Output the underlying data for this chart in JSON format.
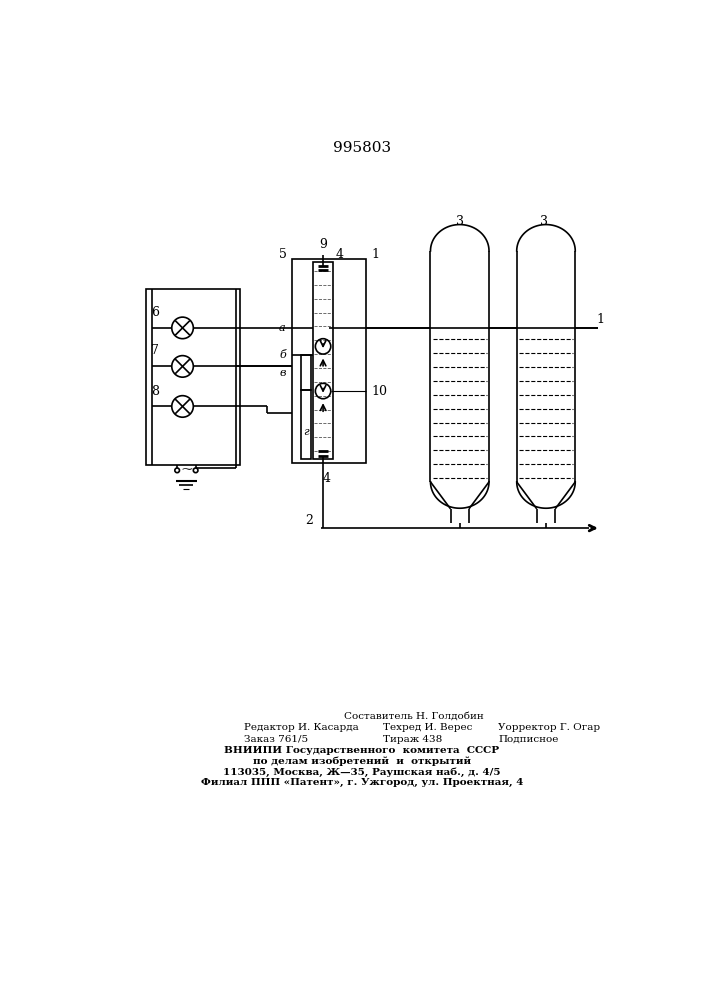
{
  "title": "995803",
  "bg_color": "#ffffff",
  "line_color": "#000000",
  "title_fontsize": 11,
  "footer": {
    "col1": [
      "Редактор И. Касарда",
      "Заказ 761/5"
    ],
    "col2_top": "Составитель Н. Голдобин",
    "col2": [
      "Техред И. Верес",
      "Тираж 438"
    ],
    "col3": [
      "Уорректор Г. Огар",
      "Подписное"
    ],
    "lines": [
      "ВНИИПИ Государственного  комитета  СССР",
      "по делам изобретений  и  открытий",
      "113035, Москва, Ж—35, Раушская наб., д. 4/5",
      "Филиал ППП «Патент», г. Ужгород, ул. Проектная, 4"
    ]
  }
}
